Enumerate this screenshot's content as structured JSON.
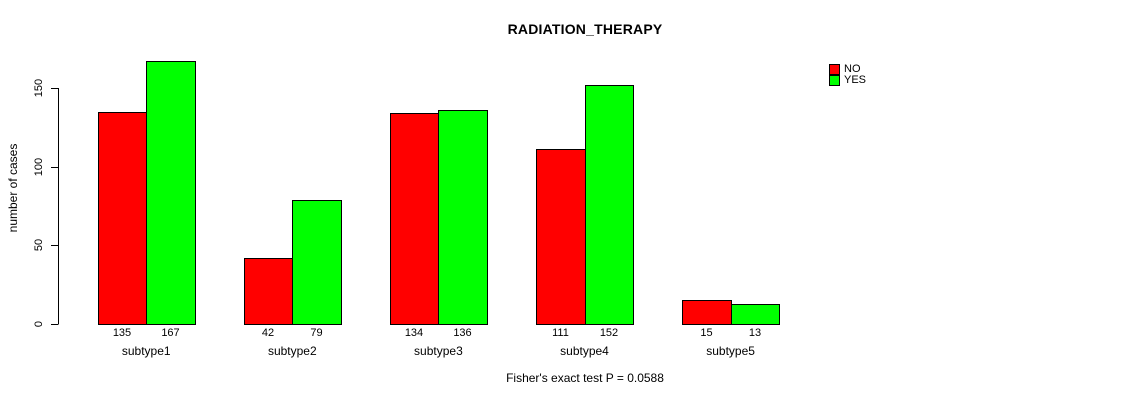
{
  "chart_data": {
    "type": "bar",
    "title": "RADIATION_THERAPY",
    "ylabel": "number of cases",
    "xlabel": "",
    "categories": [
      "subtype1",
      "subtype2",
      "subtype3",
      "subtype4",
      "subtype5"
    ],
    "series": [
      {
        "name": "NO",
        "color": "#FF0000",
        "values": [
          135,
          42,
          134,
          111,
          15
        ]
      },
      {
        "name": "YES",
        "color": "#00FF00",
        "values": [
          167,
          79,
          136,
          152,
          13
        ]
      }
    ],
    "yticks": [
      0,
      50,
      100,
      150
    ],
    "ylim": [
      0,
      150
    ],
    "bar_value_labels_shown": true,
    "grid": false,
    "legend_position": "top-right",
    "annotation": "Fisher's exact test P = 0.0588"
  },
  "colors": {
    "background": "#FFFFFF",
    "text": "#000000",
    "axis": "#000000",
    "bar_border": "#000000"
  }
}
